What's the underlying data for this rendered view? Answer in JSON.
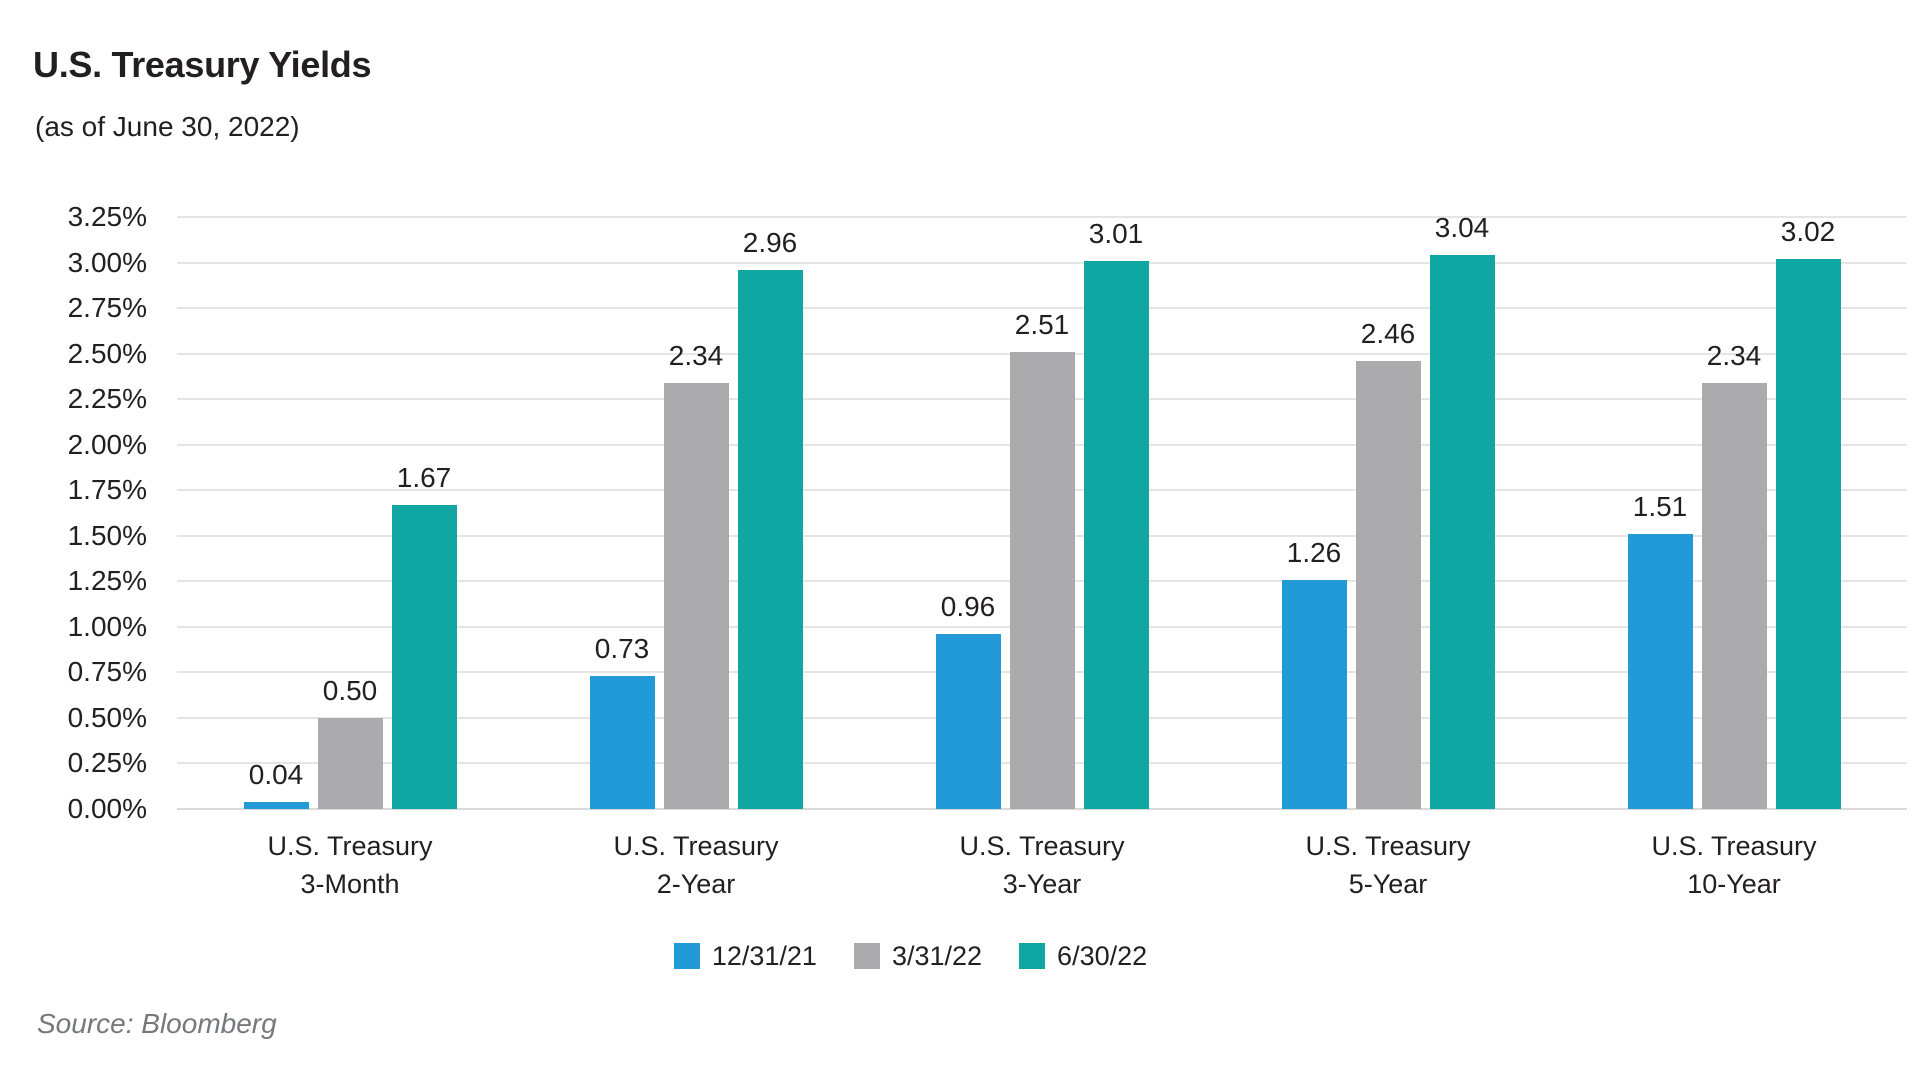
{
  "header": {
    "title": "U.S. Treasury Yields",
    "subtitle": "(as of June 30, 2022)"
  },
  "footer": {
    "source": "Source: Bloomberg"
  },
  "chart_data": {
    "type": "bar",
    "title": "U.S. Treasury Yields",
    "subtitle": "(as of June 30, 2022)",
    "categories": [
      "U.S. Treasury 3-Month",
      "U.S. Treasury 2-Year",
      "U.S. Treasury 3-Year",
      "U.S. Treasury 5-Year",
      "U.S. Treasury 10-Year"
    ],
    "category_label_lines": [
      [
        "U.S. Treasury",
        "3-Month"
      ],
      [
        "U.S. Treasury",
        "2-Year"
      ],
      [
        "U.S. Treasury",
        "3-Year"
      ],
      [
        "U.S. Treasury",
        "5-Year"
      ],
      [
        "U.S. Treasury",
        "10-Year"
      ]
    ],
    "series": [
      {
        "name": "12/31/21",
        "color": "#229ad7",
        "values": [
          0.04,
          0.73,
          0.96,
          1.26,
          1.51
        ]
      },
      {
        "name": "3/31/22",
        "color": "#ababad",
        "values": [
          0.5,
          2.34,
          2.51,
          2.46,
          2.34
        ]
      },
      {
        "name": "6/30/22",
        "color": "#10a6a2",
        "values": [
          1.67,
          2.96,
          3.01,
          3.04,
          3.02
        ]
      }
    ],
    "xlabel": "",
    "ylabel": "",
    "ylim": [
      0,
      3.25
    ],
    "ytick_step": 0.25,
    "ytick_labels": [
      "0.00%",
      "0.25%",
      "0.50%",
      "0.75%",
      "1.00%",
      "1.25%",
      "1.50%",
      "1.75%",
      "2.00%",
      "2.25%",
      "2.50%",
      "2.75%",
      "3.00%",
      "3.25%"
    ],
    "grid": "horizontal",
    "gridline_color": "#e5e5e3",
    "baseline_color": "#d9d9d7",
    "value_labels": true,
    "value_label_decimals": 2,
    "legend_position": "bottom",
    "source": "Source: Bloomberg",
    "text_color": "#231f20",
    "source_color": "#77787b"
  }
}
